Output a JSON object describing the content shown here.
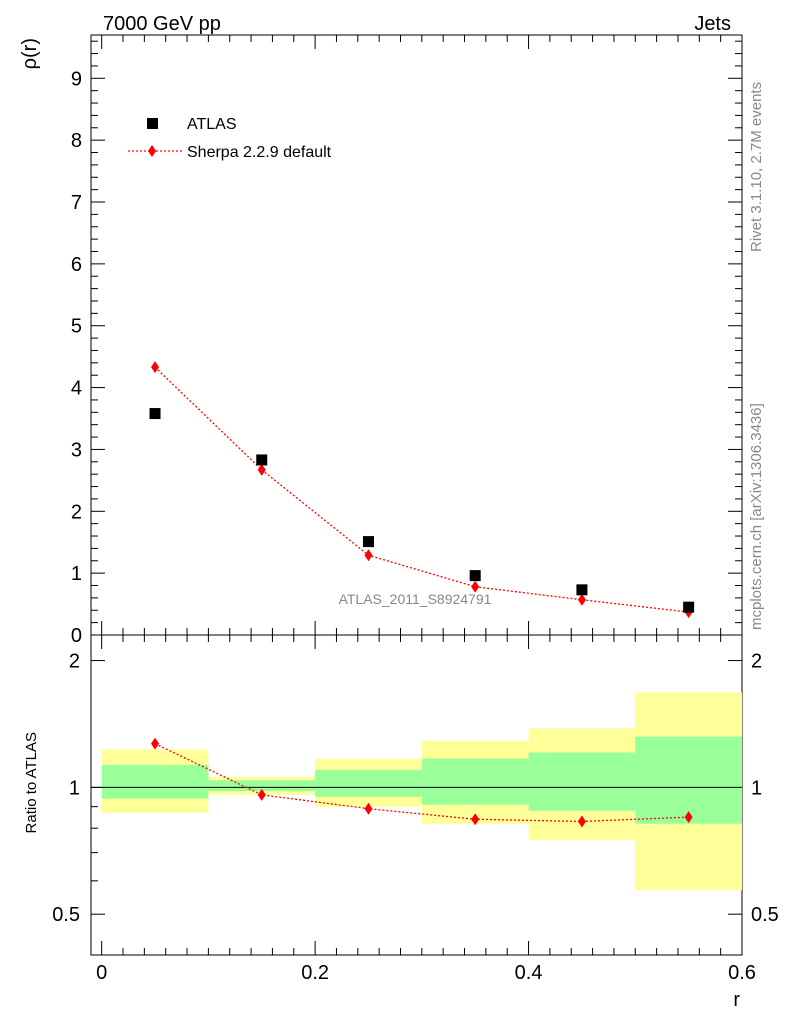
{
  "header": {
    "left": "7000 GeV pp",
    "right": "Jets"
  },
  "side_text": {
    "rivet": "Rivet 3.1.10,  2.7M events",
    "mcplots": "mcplots.cern.ch [arXiv:1306.3436]"
  },
  "analysis_label": "ATLAS_2011_S8924791",
  "colors": {
    "data": "#000000",
    "mc": "#ff0000",
    "band_outer": "#ffff99",
    "band_inner": "#99ff99"
  },
  "chart_data": [
    {
      "type": "scatter",
      "ylabel": "ρ(r)",
      "xlim": [
        -0.01,
        0.6
      ],
      "ylim": [
        0,
        9.7
      ],
      "yticks": [
        "0",
        "1",
        "2",
        "3",
        "4",
        "5",
        "6",
        "7",
        "8",
        "9"
      ],
      "legend": {
        "placement": "top-left",
        "entries": [
          "ATLAS",
          "Sherpa 2.2.9 default"
        ]
      },
      "series": [
        {
          "name": "ATLAS",
          "marker": "square",
          "x": [
            0.05,
            0.15,
            0.25,
            0.35,
            0.45,
            0.55
          ],
          "y": [
            3.58,
            2.83,
            1.51,
            0.96,
            0.73,
            0.45
          ]
        },
        {
          "name": "Sherpa 2.2.9 default",
          "marker": "diamond",
          "line": "dotted",
          "x": [
            0.05,
            0.15,
            0.25,
            0.35,
            0.45,
            0.55
          ],
          "y": [
            4.33,
            2.67,
            1.29,
            0.78,
            0.57,
            0.37
          ]
        }
      ]
    },
    {
      "type": "line",
      "ylabel": "Ratio to ATLAS",
      "xlabel": "r",
      "xlim": [
        -0.01,
        0.6
      ],
      "ylim": [
        0.4,
        2.3
      ],
      "xticks": [
        "0",
        "0.2",
        "0.4",
        "0.6"
      ],
      "yticks": [
        "0.5",
        "1",
        "2"
      ],
      "bands": [
        {
          "x0": 0.0,
          "x1": 0.1,
          "outer": [
            0.87,
            1.23
          ],
          "inner": [
            0.94,
            1.13
          ]
        },
        {
          "x0": 0.1,
          "x1": 0.2,
          "outer": [
            0.96,
            1.06
          ],
          "inner": [
            0.98,
            1.04
          ]
        },
        {
          "x0": 0.2,
          "x1": 0.3,
          "outer": [
            0.9,
            1.17
          ],
          "inner": [
            0.95,
            1.1
          ]
        },
        {
          "x0": 0.3,
          "x1": 0.4,
          "outer": [
            0.82,
            1.29
          ],
          "inner": [
            0.91,
            1.17
          ]
        },
        {
          "x0": 0.4,
          "x1": 0.5,
          "outer": [
            0.75,
            1.38
          ],
          "inner": [
            0.88,
            1.21
          ]
        },
        {
          "x0": 0.5,
          "x1": 0.6,
          "outer": [
            0.57,
            1.68
          ],
          "inner": [
            0.82,
            1.32
          ]
        }
      ],
      "series": [
        {
          "name": "Sherpa 2.2.9 default",
          "x": [
            0.05,
            0.15,
            0.25,
            0.35,
            0.45,
            0.55
          ],
          "y": [
            1.27,
            0.96,
            0.89,
            0.84,
            0.83,
            0.85
          ]
        }
      ]
    }
  ]
}
